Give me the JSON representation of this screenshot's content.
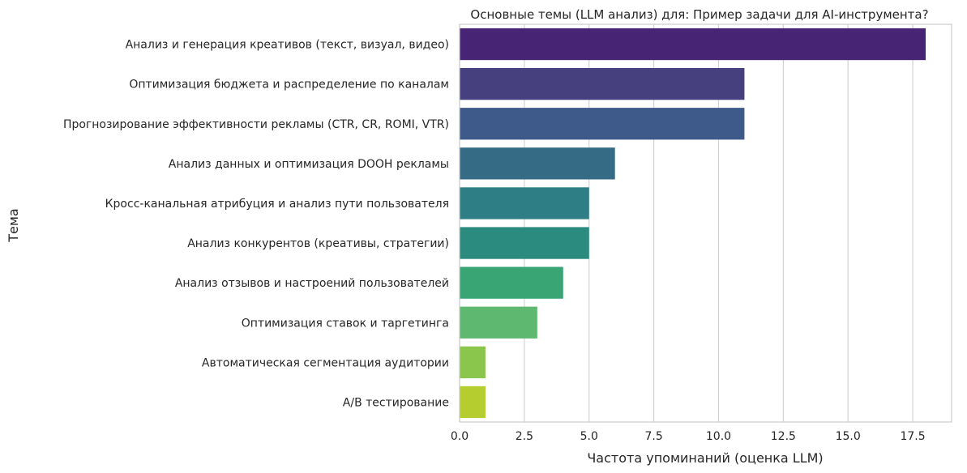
{
  "chart_data": {
    "type": "bar",
    "orientation": "horizontal",
    "title": "Основные темы (LLM анализ) для: Пример задачи для AI-инструмента?",
    "xlabel": "Частота упоминаний (оценка LLM)",
    "ylabel": "Тема",
    "xlim": [
      0,
      19
    ],
    "xticks": [
      0,
      2.5,
      5,
      7.5,
      10,
      12.5,
      15,
      17.5
    ],
    "xtick_labels": [
      "0.0",
      "2.5",
      "5.0",
      "7.5",
      "10.0",
      "12.5",
      "15.0",
      "17.5"
    ],
    "grid": true,
    "categories": [
      "Анализ и генерация креативов (текст, визуал, видео)",
      "Оптимизация бюджета и распределение по каналам",
      "Прогнозирование эффективности рекламы (CTR, CR, ROMI, VTR)",
      "Анализ данных и оптимизация DOOH рекламы",
      "Кросс-канальная атрибуция и анализ пути пользователя",
      "Анализ конкурентов (креативы, стратегии)",
      "Анализ отзывов и настроений пользователей",
      "Оптимизация ставок и таргетинга",
      "Автоматическая сегментация аудитории",
      "A/B тестирование"
    ],
    "values": [
      18,
      11,
      11,
      6,
      5,
      5,
      4,
      3,
      1,
      1
    ],
    "colors": [
      "#482475",
      "#46407e",
      "#3e5a8b",
      "#356b85",
      "#2e7e86",
      "#2a8b7e",
      "#3aa574",
      "#5fb870",
      "#8ac54c",
      "#b5cd2f"
    ]
  }
}
